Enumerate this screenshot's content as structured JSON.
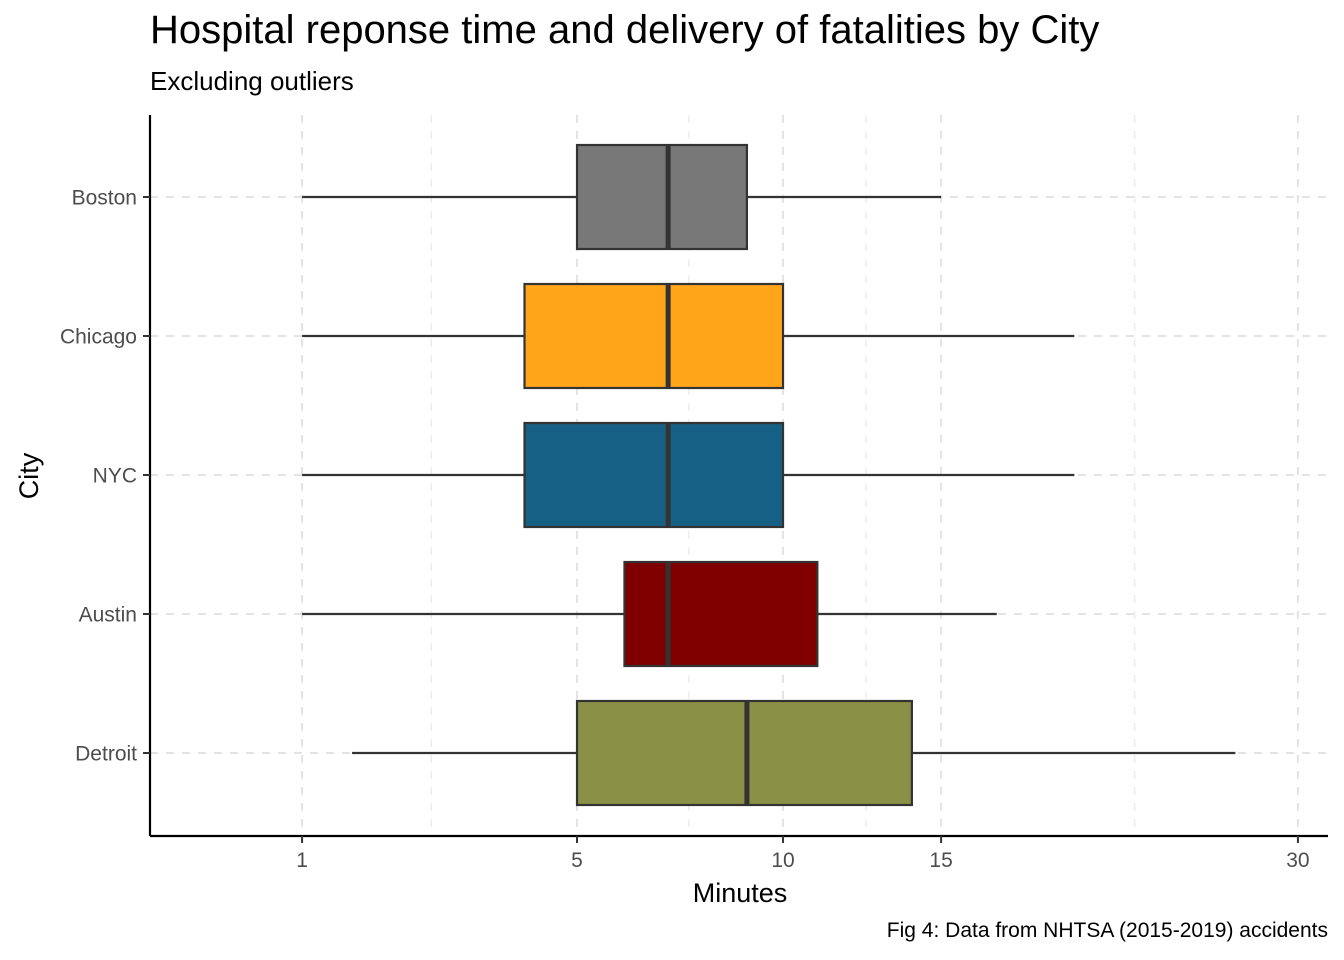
{
  "chart_data": {
    "type": "boxplot",
    "orientation": "horizontal",
    "title": "Hospital reponse time and delivery of fatalities by City",
    "subtitle": "Excluding outliers",
    "caption": "Fig 4: Data from NHTSA (2015-2019) accidents",
    "xlabel": "Minutes",
    "ylabel": "City",
    "x_scale": "sqrt",
    "xlim": [
      0.1,
      31.5
    ],
    "x_ticks": [
      1,
      5,
      10,
      15,
      30
    ],
    "x_minor_ticks": [
      2.5,
      7.5,
      12.5,
      22.5
    ],
    "grid": "dashed major and minor",
    "legend": "none",
    "categories": [
      "Boston",
      "Chicago",
      "NYC",
      "Austin",
      "Detroit"
    ],
    "boxes": [
      {
        "category": "Boston",
        "whisker_low": 1,
        "q1": 5,
        "median": 7,
        "q3": 9,
        "whisker_high": 15,
        "color": "#787878"
      },
      {
        "category": "Chicago",
        "whisker_low": 1,
        "q1": 4,
        "median": 7,
        "q3": 10,
        "whisker_high": 20,
        "color": "#FFA519"
      },
      {
        "category": "NYC",
        "whisker_low": 1,
        "q1": 4,
        "median": 7,
        "q3": 10,
        "whisker_high": 20,
        "color": "#176085"
      },
      {
        "category": "Austin",
        "whisker_low": 1,
        "q1": 6,
        "median": 7,
        "q3": 11,
        "whisker_high": 17,
        "color": "#800000"
      },
      {
        "category": "Detroit",
        "whisker_low": 1.5,
        "q1": 5,
        "median": 9,
        "q3": 14,
        "whisker_high": 27,
        "color": "#8A9045"
      }
    ]
  }
}
